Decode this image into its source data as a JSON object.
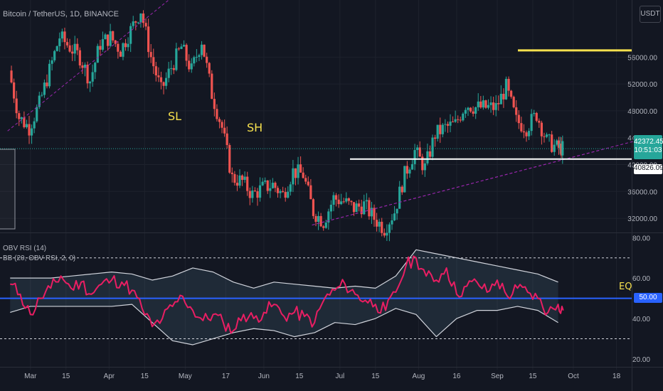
{
  "header": {
    "symbol_line": "Bitcoin / TetherUS, 1D, BINANCE",
    "quote_currency": "USDT"
  },
  "indicators": {
    "obv_rsi_label": "OBV RSI (14)",
    "bb_label": "BB (20, OBV RSI, 2, 0)",
    "eq_label": "EQ"
  },
  "annotations": {
    "sl": "SL",
    "sh": "SH"
  },
  "price_labels": {
    "last_price": "42372.45",
    "countdown": "10:51:03",
    "level": "40826.09",
    "eq_value": "50.00"
  },
  "colors": {
    "background": "#131722",
    "grid": "#1e222d",
    "candle_up": "#26a69a",
    "candle_down": "#ef5350",
    "rsi_line": "#e91e63",
    "bands": "#d1d4dc",
    "eq_line": "#2962ff",
    "resistance_line": "#f7e14e",
    "support_line": "#ffffff",
    "trendline": "#9c27b0",
    "annotation_text": "#f7e14e"
  },
  "chart_data": [
    {
      "type": "candlestick",
      "title": "Bitcoin / TetherUS, 1D, BINANCE",
      "y_tick_labels": [
        "32000.00",
        "36000.00",
        "40000.00",
        "44000.00",
        "48000.00",
        "52000.00",
        "56000.00"
      ],
      "ylim": [
        30000,
        64500
      ],
      "x_tick_labels": [
        "Mar",
        "15",
        "Apr",
        "15",
        "May",
        "17",
        "Jun",
        "15",
        "Jul",
        "15",
        "Aug",
        "16",
        "Sep",
        "15",
        "Oct",
        "18"
      ],
      "grid": true,
      "horizontal_levels": [
        {
          "name": "resistance",
          "value": 57000
        },
        {
          "name": "support",
          "value": 40826.09
        }
      ],
      "trendlines": [
        {
          "name": "upper-trendline",
          "from": [
            "2021-02-20",
            45000
          ],
          "to": [
            "2021-05-01",
            66500
          ]
        },
        {
          "name": "lower-trendline",
          "from": [
            "2021-06-20",
            31000
          ],
          "to": [
            "2021-10-15",
            42500
          ]
        }
      ],
      "series": [
        {
          "x": [
            "2021-02-21",
            "2021-02-25",
            "2021-03-01",
            "2021-03-05",
            "2021-03-09",
            "2021-03-13",
            "2021-03-17",
            "2021-03-21",
            "2021-03-25",
            "2021-03-29",
            "2021-04-02",
            "2021-04-06",
            "2021-04-10",
            "2021-04-14",
            "2021-04-18",
            "2021-04-22",
            "2021-04-26",
            "2021-04-30",
            "2021-05-04",
            "2021-05-08",
            "2021-05-12",
            "2021-05-16",
            "2021-05-20",
            "2021-05-24",
            "2021-05-28",
            "2021-06-01",
            "2021-06-05",
            "2021-06-09",
            "2021-06-13",
            "2021-06-17",
            "2021-06-21",
            "2021-06-25",
            "2021-06-29",
            "2021-07-03",
            "2021-07-07",
            "2021-07-11",
            "2021-07-15",
            "2021-07-19",
            "2021-07-23",
            "2021-07-27",
            "2021-07-31",
            "2021-08-04",
            "2021-08-08",
            "2021-08-12",
            "2021-08-16",
            "2021-08-20",
            "2021-08-24",
            "2021-08-28",
            "2021-09-01",
            "2021-09-05",
            "2021-09-09",
            "2021-09-13",
            "2021-09-17",
            "2021-09-21",
            "2021-09-25",
            "2021-09-27"
          ],
          "close": [
            54000,
            47000,
            45500,
            49000,
            54000,
            59000,
            57500,
            56000,
            52500,
            58000,
            59000,
            57000,
            60000,
            63000,
            56000,
            51000,
            54500,
            57500,
            54000,
            58500,
            50500,
            45500,
            38000,
            37500,
            35500,
            36500,
            37000,
            35500,
            39000,
            38500,
            33000,
            31500,
            35000,
            34500,
            33500,
            34000,
            32000,
            30500,
            33000,
            38500,
            42000,
            39500,
            44500,
            45500,
            46000,
            49000,
            48500,
            48500,
            48500,
            51500,
            46500,
            45500,
            47500,
            43500,
            42500,
            42372
          ]
        }
      ]
    },
    {
      "type": "line",
      "title": "OBV RSI (14)",
      "y_tick_labels": [
        "20.00",
        "40.00",
        "50.00",
        "60.00",
        "80.00"
      ],
      "ylim": [
        17.5,
        81.5
      ],
      "horizontal_levels": [
        {
          "name": "overbought",
          "value": 70
        },
        {
          "name": "equilibrium",
          "value": 50
        },
        {
          "name": "oversold",
          "value": 30
        }
      ],
      "series": [
        {
          "name": "OBV RSI (14)",
          "x": [
            "2021-02-21",
            "2021-02-25",
            "2021-03-01",
            "2021-03-05",
            "2021-03-09",
            "2021-03-13",
            "2021-03-17",
            "2021-03-21",
            "2021-03-25",
            "2021-03-29",
            "2021-04-02",
            "2021-04-06",
            "2021-04-10",
            "2021-04-14",
            "2021-04-18",
            "2021-04-22",
            "2021-04-26",
            "2021-04-30",
            "2021-05-04",
            "2021-05-08",
            "2021-05-12",
            "2021-05-16",
            "2021-05-20",
            "2021-05-24",
            "2021-05-28",
            "2021-06-01",
            "2021-06-05",
            "2021-06-09",
            "2021-06-13",
            "2021-06-17",
            "2021-06-21",
            "2021-06-25",
            "2021-06-29",
            "2021-07-03",
            "2021-07-07",
            "2021-07-11",
            "2021-07-15",
            "2021-07-19",
            "2021-07-23",
            "2021-07-27",
            "2021-07-31",
            "2021-08-04",
            "2021-08-08",
            "2021-08-12",
            "2021-08-16",
            "2021-08-20",
            "2021-08-24",
            "2021-08-28",
            "2021-09-01",
            "2021-09-05",
            "2021-09-09",
            "2021-09-13",
            "2021-09-17",
            "2021-09-21",
            "2021-09-25",
            "2021-09-27"
          ],
          "values": [
            57,
            52,
            42,
            50,
            55,
            61,
            55,
            58,
            52,
            57,
            59,
            58,
            54,
            45,
            36,
            40,
            46,
            51,
            44,
            39,
            42,
            38,
            34,
            42,
            40,
            43,
            47,
            41,
            43,
            41,
            38,
            50,
            54,
            57,
            52,
            49,
            47,
            44,
            53,
            66,
            70,
            61,
            59,
            65,
            52,
            56,
            58,
            53,
            59,
            51,
            55,
            53,
            50,
            43,
            47,
            44
          ]
        },
        {
          "name": "BB upper",
          "x": [
            "2021-02-21",
            "2021-03-01",
            "2021-03-09",
            "2021-03-17",
            "2021-03-25",
            "2021-04-02",
            "2021-04-10",
            "2021-04-18",
            "2021-04-26",
            "2021-05-04",
            "2021-05-12",
            "2021-05-20",
            "2021-05-28",
            "2021-06-05",
            "2021-06-13",
            "2021-06-21",
            "2021-06-29",
            "2021-07-07",
            "2021-07-15",
            "2021-07-23",
            "2021-07-31",
            "2021-08-08",
            "2021-08-16",
            "2021-08-24",
            "2021-09-01",
            "2021-09-09",
            "2021-09-17",
            "2021-09-25"
          ],
          "values": [
            60,
            60,
            60,
            61,
            62,
            63,
            62,
            59,
            61,
            65,
            63,
            58,
            55,
            58,
            57,
            56,
            55,
            56,
            55,
            61,
            74,
            72,
            70,
            68,
            66,
            64,
            62,
            58
          ]
        },
        {
          "name": "BB lower",
          "x": [
            "2021-02-21",
            "2021-03-01",
            "2021-03-09",
            "2021-03-17",
            "2021-03-25",
            "2021-04-02",
            "2021-04-10",
            "2021-04-18",
            "2021-04-26",
            "2021-05-04",
            "2021-05-12",
            "2021-05-20",
            "2021-05-28",
            "2021-06-05",
            "2021-06-13",
            "2021-06-21",
            "2021-06-29",
            "2021-07-07",
            "2021-07-15",
            "2021-07-23",
            "2021-07-31",
            "2021-08-08",
            "2021-08-16",
            "2021-08-24",
            "2021-09-01",
            "2021-09-09",
            "2021-09-17",
            "2021-09-25"
          ],
          "values": [
            43,
            46,
            46,
            46,
            46,
            46,
            47,
            38,
            29,
            27,
            30,
            33,
            35,
            34,
            31,
            33,
            38,
            37,
            40,
            45,
            42,
            31,
            40,
            44,
            44,
            46,
            44,
            38
          ]
        }
      ]
    }
  ]
}
